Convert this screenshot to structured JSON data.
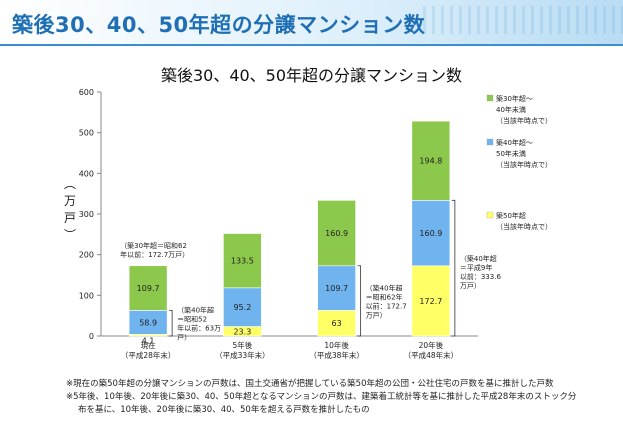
{
  "header": {
    "title": "築後30、40、50年超の分譲マンション数"
  },
  "chart_data": {
    "type": "bar",
    "stacked": true,
    "title": "築後30、40、50年超の分譲マンション数",
    "ylabel": "（万戸）",
    "ylim": [
      0,
      600
    ],
    "yticks": [
      "0",
      "100",
      "200",
      "300",
      "400",
      "500",
      "600"
    ],
    "categories": [
      {
        "line1": "現在",
        "line2": "（平成28年末）"
      },
      {
        "line1": "5年後",
        "line2": "（平成33年末）"
      },
      {
        "line1": "10年後",
        "line2": "（平成38年末）"
      },
      {
        "line1": "20年後",
        "line2": "（平成48年末）"
      }
    ],
    "series": [
      {
        "name": "築50年超",
        "legend": [
          "築50年超",
          "（当該年時点で）"
        ],
        "color": "#ffff66",
        "values": [
          4.1,
          23.3,
          63,
          172.7
        ],
        "labels": [
          "4.1",
          "23.3",
          "63",
          "172.7"
        ]
      },
      {
        "name": "築40年超～50年未満",
        "legend": [
          "築40年超～",
          "50年未満",
          "（当該年時点で）"
        ],
        "color": "#6fb3ef",
        "values": [
          58.9,
          95.2,
          109.7,
          160.9
        ],
        "labels": [
          "58.9",
          "95.2",
          "109.7",
          "160.9"
        ]
      },
      {
        "name": "築30年超～40年未満",
        "legend": [
          "築30年超～",
          "40年未満",
          "（当該年時点で）"
        ],
        "color": "#8cc84b",
        "values": [
          109.7,
          133.5,
          160.9,
          194.8
        ],
        "labels": [
          "109.7",
          "133.5",
          "160.9",
          "194.8"
        ]
      }
    ],
    "annotations": [
      {
        "id": "now-30",
        "lines": [
          "（築30年超＝昭和62",
          "年以前：172.7万戸）"
        ]
      },
      {
        "id": "now-40",
        "lines": [
          "（築40年超",
          "＝昭和52",
          "年以前：63万",
          "戸）"
        ]
      },
      {
        "id": "y10-40",
        "lines": [
          "（築40年超",
          "＝昭和62年",
          "以前：172.7",
          "万戸）"
        ]
      },
      {
        "id": "y20-40",
        "lines": [
          "（築40年超",
          "＝平成9年",
          "以前：333.6",
          "万戸）"
        ]
      }
    ]
  },
  "footnotes": [
    "※現在の築50年超の分譲マンションの戸数は、国土交通省が把握している築50年超の公団・公社住宅の戸数を基に推計した戸数",
    "※5年後、10年後、20年後に築30、40、50年超となるマンションの戸数は、建築着工統計等を基に推計した平成28年末のストック分",
    "布を基に、10年後、20年後に築30、40、50年を超える戸数を推計したもの"
  ]
}
